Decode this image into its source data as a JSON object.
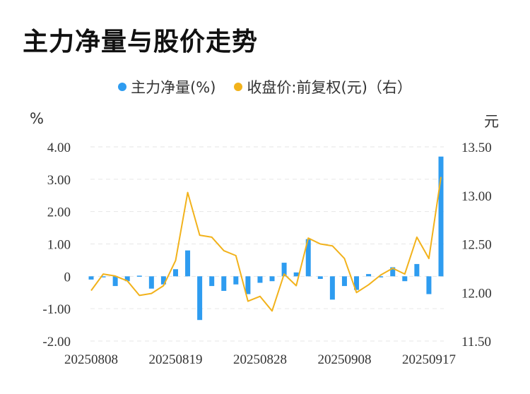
{
  "title": "主力净量与股价走势",
  "legend": {
    "series1": "主力净量(%)",
    "series2": "收盘价:前复权(元)（右）"
  },
  "units": {
    "left": "%",
    "right": "元"
  },
  "colors": {
    "bar": "#2e9cf0",
    "line": "#f2b21b",
    "grid": "#e6e6e6"
  },
  "chart_data": {
    "type": "bar",
    "title": "主力净量与股价走势",
    "x_tick_labels": [
      "20250808",
      "20250819",
      "20250828",
      "20250908",
      "20250917"
    ],
    "y_left": {
      "label": "%",
      "ylim": [
        -2,
        4
      ],
      "ticks": [
        "4.00",
        "3.00",
        "2.00",
        "1.00",
        "0",
        "-1.00",
        "-2.00"
      ]
    },
    "y_right": {
      "label": "元",
      "ylim": [
        11.5,
        13.5
      ],
      "ticks": [
        "13.50",
        "13.00",
        "12.50",
        "12.00",
        "11.50"
      ]
    },
    "grid": true,
    "legend_position": "top-center",
    "series": [
      {
        "name": "主力净量(%)",
        "type": "bar",
        "axis": "left",
        "values": [
          -0.1,
          -0.03,
          -0.3,
          -0.15,
          0.02,
          -0.38,
          -0.25,
          0.22,
          0.8,
          -1.35,
          -0.3,
          -0.45,
          -0.25,
          -0.55,
          -0.2,
          -0.15,
          0.42,
          0.12,
          1.15,
          -0.08,
          -0.72,
          -0.3,
          -0.42,
          0.07,
          0.0,
          0.28,
          -0.15,
          0.38,
          -0.55,
          3.7
        ]
      },
      {
        "name": "收盘价:前复权(元)（右）",
        "type": "line",
        "axis": "right",
        "values": [
          12.02,
          12.19,
          12.17,
          12.12,
          11.97,
          11.99,
          12.07,
          12.33,
          13.03,
          12.59,
          12.57,
          12.43,
          12.38,
          11.91,
          11.96,
          11.81,
          12.19,
          12.07,
          12.56,
          12.5,
          12.48,
          12.35,
          12.0,
          12.08,
          12.18,
          12.25,
          12.19,
          12.57,
          12.35,
          13.19
        ]
      }
    ]
  }
}
